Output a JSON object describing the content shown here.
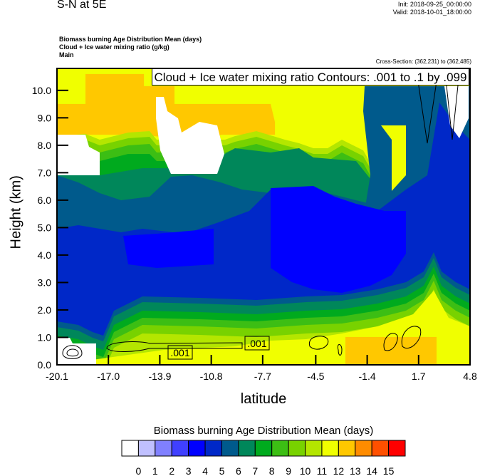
{
  "header": {
    "title": "S-N at 5E",
    "init": "Init: 2018-09-25_00:00:00",
    "valid": "Valid: 2018-10-01_18:00:00",
    "fields": [
      "Biomass burning Age Distribution Mean   (days)",
      "Cloud + Ice water mixing ratio   (g/kg)",
      "Main"
    ],
    "cross_section": "Cross-Section: (362,231) to (362,485)"
  },
  "chart_data": {
    "type": "heatmap",
    "subtype": "filled-contour cross-section with line contours",
    "xlabel": "latitude",
    "ylabel": "Height (km)",
    "xlim": [
      -20.1,
      4.8
    ],
    "ylim": [
      0.0,
      10.8
    ],
    "x_ticks": [
      "-20.1",
      "-17.0",
      "-13.9",
      "-10.8",
      "-7.7",
      "-4.5",
      "-1.4",
      "1.7",
      "4.8"
    ],
    "x_tick_values": [
      -20.1,
      -17.0,
      -13.9,
      -10.8,
      -7.7,
      -4.5,
      -1.4,
      1.7,
      4.8
    ],
    "y_ticks": [
      "0.0",
      "1.0",
      "2.0",
      "3.0",
      "4.0",
      "5.0",
      "6.0",
      "7.0",
      "8.0",
      "9.0",
      "10.0"
    ],
    "y_tick_values": [
      0,
      1,
      2,
      3,
      4,
      5,
      6,
      7,
      8,
      9,
      10
    ],
    "contour_title": "Cloud + Ice water mixing ratio Contours: .001 to .1 by .099",
    "contour_labels": [
      ".001",
      ".001"
    ],
    "colorbar": {
      "title": "Biomass burning Age Distribution Mean  (days)",
      "levels": [
        "0",
        "1",
        "2",
        "3",
        "4",
        "5",
        "6",
        "7",
        "8",
        "9",
        "10",
        "11",
        "12",
        "13",
        "14",
        "15"
      ],
      "colors": [
        "#ffffff",
        "#c0c0ff",
        "#8080ff",
        "#4040ff",
        "#0000ff",
        "#0028c8",
        "#005a8c",
        "#00875a",
        "#00aa1e",
        "#3cbe14",
        "#78d200",
        "#b4e600",
        "#f0ff00",
        "#ffc800",
        "#ff8c00",
        "#ff5000",
        "#ff0000"
      ]
    }
  }
}
